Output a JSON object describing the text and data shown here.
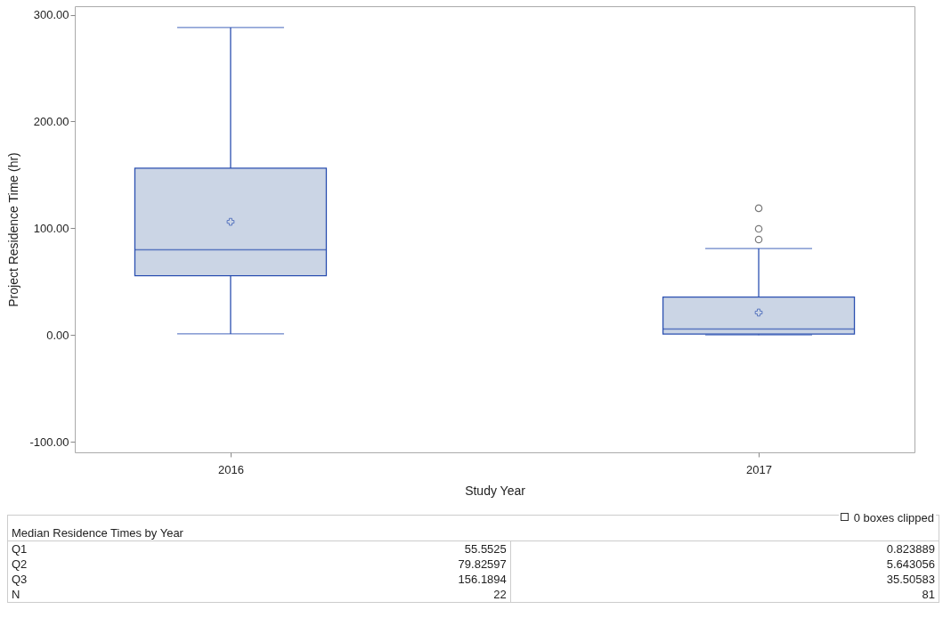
{
  "chart_data": {
    "type": "box",
    "xlabel": "Study Year",
    "ylabel": "Project Residence Time (hr)",
    "categories": [
      "2016",
      "2017"
    ],
    "boxes": [
      {
        "low": 1,
        "q1": 55.5525,
        "median": 79.82597,
        "q3": 156.1894,
        "high": 288,
        "mean": 106
      },
      {
        "low": 0,
        "q1": 0.823889,
        "median": 5.643056,
        "q3": 35.50583,
        "high": 81,
        "mean": 21,
        "outliers": [
          118.7,
          99.4,
          89.4
        ]
      }
    ],
    "color": "#cbd5e5",
    "marker": "cross",
    "ylim": [
      -110,
      308
    ],
    "yticks": [
      {
        "value": -100,
        "label": "-100.00"
      },
      {
        "value": 0,
        "label": "0.00"
      },
      {
        "value": 100,
        "label": "100.00"
      },
      {
        "value": 200,
        "label": "200.00"
      },
      {
        "value": 300,
        "label": "300.00"
      }
    ],
    "annotations": [
      "0 boxes clipped",
      "Median Residence Times by Year",
      "Q1",
      "55.5525",
      "0.823889",
      "Q2",
      "79.82597",
      "5.643056",
      "Q3",
      "156.1894",
      "35.50583",
      "N",
      "22",
      "81"
    ]
  }
}
